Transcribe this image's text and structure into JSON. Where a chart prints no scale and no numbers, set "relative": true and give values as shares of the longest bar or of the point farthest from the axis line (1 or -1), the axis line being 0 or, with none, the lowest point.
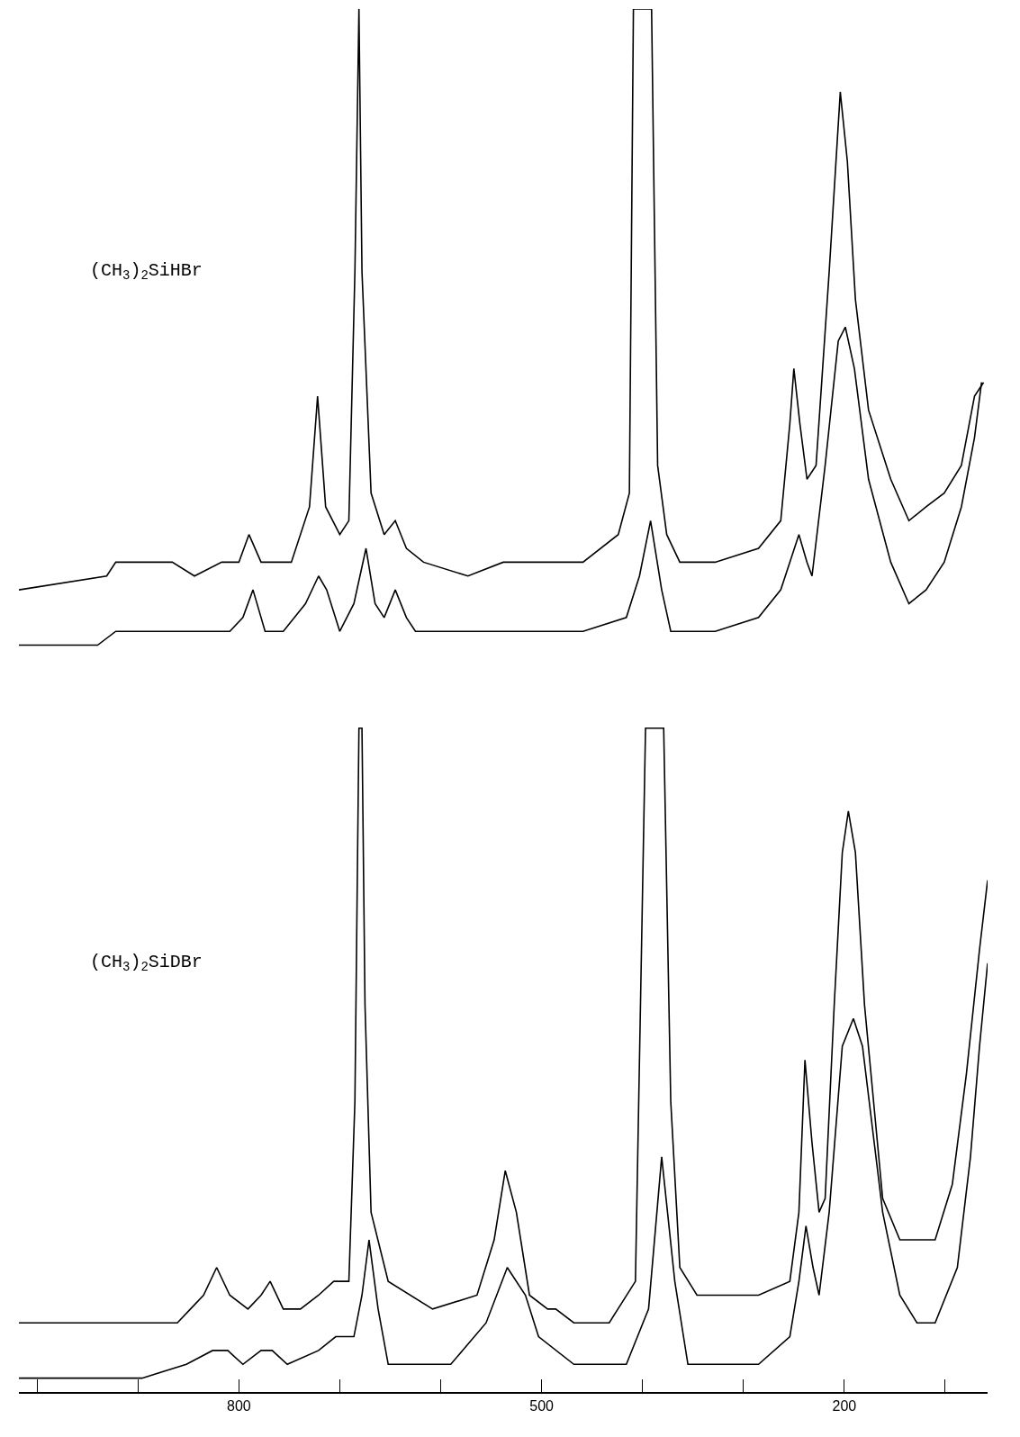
{
  "chart_data": {
    "type": "line",
    "relative": true,
    "xlim": [
      1018,
      58
    ],
    "xticks": [
      {
        "value": 1000,
        "label": null
      },
      {
        "value": 900,
        "label": null
      },
      800,
      {
        "value": 700,
        "label": null
      },
      {
        "value": 600,
        "label": null
      },
      500,
      {
        "value": 400,
        "label": null
      },
      {
        "value": 300,
        "label": null
      },
      200,
      {
        "value": 100,
        "label": null
      }
    ],
    "annotations": [
      "(CH$_{3}$)$_{2}$SiHBr",
      "(CH$_{3}$)$_{2}$SiDBr"
    ],
    "series": [
      {
        "color": "#000000",
        "x": [
          1018,
          931,
          922,
          909,
          883,
          866,
          844,
          817,
          800,
          790,
          778,
          765,
          748,
          730,
          722,
          714,
          700,
          691,
          685,
          681,
          678,
          669,
          656,
          645,
          634,
          617,
          573,
          538,
          503,
          459,
          424,
          413,
          409,
          391,
          385,
          376,
          363,
          328,
          285,
          263,
          254,
          250,
          244,
          237,
          228,
          215,
          204,
          197,
          189,
          176,
          154,
          136,
          119,
          101,
          84,
          71,
          62
        ],
        "values": [
          0.58,
          0.59,
          0.6,
          0.6,
          0.6,
          0.6,
          0.59,
          0.6,
          0.6,
          0.62,
          0.6,
          0.6,
          0.6,
          0.64,
          0.72,
          0.64,
          0.62,
          0.63,
          0.81,
          1.0,
          0.81,
          0.65,
          0.62,
          0.63,
          0.61,
          0.6,
          0.59,
          0.6,
          0.6,
          0.6,
          0.62,
          0.65,
          1.0,
          1.0,
          0.67,
          0.62,
          0.6,
          0.6,
          0.61,
          0.63,
          0.7,
          0.74,
          0.7,
          0.66,
          0.67,
          0.81,
          0.94,
          0.89,
          0.79,
          0.71,
          0.66,
          0.63,
          0.64,
          0.65,
          0.67,
          0.72,
          0.73
        ]
      },
      {
        "color": "#000000",
        "x": [
          1018,
          940,
          922,
          905,
          887,
          870,
          835,
          809,
          796,
          786,
          774,
          756,
          734,
          721,
          713,
          700,
          686,
          674,
          665,
          656,
          645,
          634,
          625,
          599,
          538,
          459,
          416,
          403,
          392,
          381,
          372,
          328,
          285,
          263,
          254,
          245,
          237,
          232,
          219,
          206,
          199,
          190,
          176,
          154,
          136,
          119,
          101,
          84,
          71,
          64
        ],
        "values": [
          0.54,
          0.54,
          0.55,
          0.55,
          0.55,
          0.55,
          0.55,
          0.55,
          0.56,
          0.58,
          0.55,
          0.55,
          0.57,
          0.59,
          0.58,
          0.55,
          0.57,
          0.61,
          0.57,
          0.56,
          0.58,
          0.56,
          0.55,
          0.55,
          0.55,
          0.55,
          0.56,
          0.59,
          0.63,
          0.58,
          0.55,
          0.55,
          0.56,
          0.58,
          0.6,
          0.62,
          0.6,
          0.59,
          0.67,
          0.76,
          0.77,
          0.74,
          0.66,
          0.6,
          0.57,
          0.58,
          0.6,
          0.64,
          0.69,
          0.73
        ]
      },
      {
        "color": "#000000",
        "x": [
          1018,
          896,
          861,
          848,
          835,
          822,
          809,
          791,
          778,
          769,
          756,
          739,
          721,
          706,
          691,
          685,
          681,
          678,
          675,
          669,
          652,
          608,
          564,
          547,
          536,
          525,
          512,
          494,
          486,
          468,
          433,
          407,
          397,
          379,
          372,
          363,
          346,
          285,
          254,
          245,
          239,
          232,
          225,
          219,
          210,
          202,
          196,
          189,
          180,
          162,
          145,
          128,
          110,
          93,
          79,
          66,
          58
        ],
        "values": [
          0.05,
          0.05,
          0.05,
          0.06,
          0.07,
          0.09,
          0.07,
          0.06,
          0.07,
          0.08,
          0.06,
          0.06,
          0.07,
          0.08,
          0.08,
          0.21,
          0.48,
          0.48,
          0.28,
          0.13,
          0.08,
          0.06,
          0.07,
          0.11,
          0.16,
          0.13,
          0.07,
          0.06,
          0.06,
          0.05,
          0.05,
          0.08,
          0.48,
          0.48,
          0.21,
          0.09,
          0.07,
          0.07,
          0.08,
          0.13,
          0.24,
          0.18,
          0.13,
          0.14,
          0.28,
          0.39,
          0.42,
          0.39,
          0.28,
          0.14,
          0.11,
          0.11,
          0.11,
          0.15,
          0.23,
          0.32,
          0.37
        ]
      },
      {
        "color": "#000000",
        "x": [
          1018,
          896,
          852,
          826,
          811,
          796,
          778,
          767,
          752,
          721,
          704,
          686,
          678,
          671,
          662,
          652,
          590,
          555,
          534,
          516,
          503,
          468,
          416,
          394,
          381,
          368,
          355,
          285,
          254,
          245,
          238,
          231,
          225,
          215,
          202,
          191,
          182,
          162,
          145,
          128,
          110,
          88,
          75,
          66,
          58
        ],
        "values": [
          0.01,
          0.01,
          0.02,
          0.03,
          0.03,
          0.02,
          0.03,
          0.03,
          0.02,
          0.03,
          0.04,
          0.04,
          0.07,
          0.11,
          0.06,
          0.02,
          0.02,
          0.05,
          0.09,
          0.07,
          0.04,
          0.02,
          0.02,
          0.06,
          0.17,
          0.08,
          0.02,
          0.02,
          0.04,
          0.08,
          0.12,
          0.09,
          0.07,
          0.13,
          0.25,
          0.27,
          0.25,
          0.13,
          0.07,
          0.05,
          0.05,
          0.09,
          0.17,
          0.25,
          0.31
        ]
      }
    ]
  }
}
